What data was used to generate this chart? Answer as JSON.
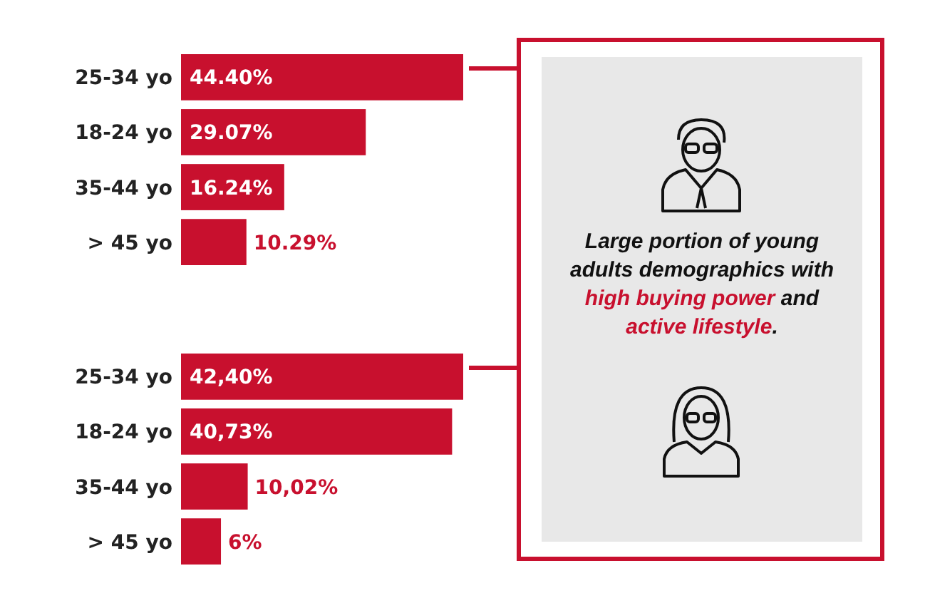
{
  "chart_data": [
    {
      "type": "bar",
      "orientation": "horizontal",
      "categories": [
        "25-34 yo",
        "18-24 yo",
        "35-44 yo",
        "> 45 yo"
      ],
      "values": [
        44.4,
        29.07,
        16.24,
        10.29
      ],
      "value_labels": [
        "44.40%",
        "29.07%",
        "16.24%",
        "10.29%"
      ],
      "color": "#c8102e"
    },
    {
      "type": "bar",
      "orientation": "horizontal",
      "categories": [
        "25-34 yo",
        "18-24 yo",
        "35-44 yo",
        "> 45 yo"
      ],
      "values": [
        42.4,
        40.73,
        10.02,
        6
      ],
      "value_labels": [
        "42,40%",
        "40,73%",
        "10,02%",
        "6%"
      ],
      "color": "#c8102e"
    },
    {
      "type": "other",
      "annotations": [
        "Large portion of young adults demographics with ",
        "high buying power",
        " and ",
        "active lifestyle",
        "."
      ]
    }
  ]
}
